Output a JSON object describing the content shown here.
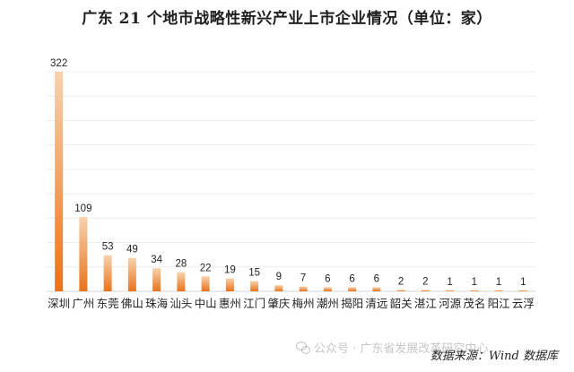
{
  "title": "广东 21 个地市战略性新兴产业上市企业情况（单位：家）",
  "source": "数据来源：Wind 数据库",
  "watermark": "公众号 · 广东省发展改革研究中心",
  "chart_data": {
    "type": "bar",
    "title": "广东 21 个地市战略性新兴产业上市企业情况（单位：家）",
    "categories": [
      "深圳",
      "广州",
      "东莞",
      "佛山",
      "珠海",
      "汕头",
      "中山",
      "惠州",
      "江门",
      "肇庆",
      "梅州",
      "潮州",
      "揭阳",
      "清远",
      "韶关",
      "湛江",
      "河源",
      "茂名",
      "阳江",
      "云浮"
    ],
    "values": [
      322,
      109,
      53,
      49,
      34,
      28,
      22,
      19,
      15,
      9,
      7,
      6,
      6,
      6,
      2,
      2,
      1,
      1,
      1,
      1
    ],
    "xlabel": "",
    "ylabel": "",
    "ylim": [
      0,
      322
    ],
    "grid": true,
    "legend": "none",
    "bar_color_top": "#F8D2AE",
    "bar_color_bottom": "#E8731C",
    "grid_color": "#ECECEC",
    "data_labels": true
  }
}
